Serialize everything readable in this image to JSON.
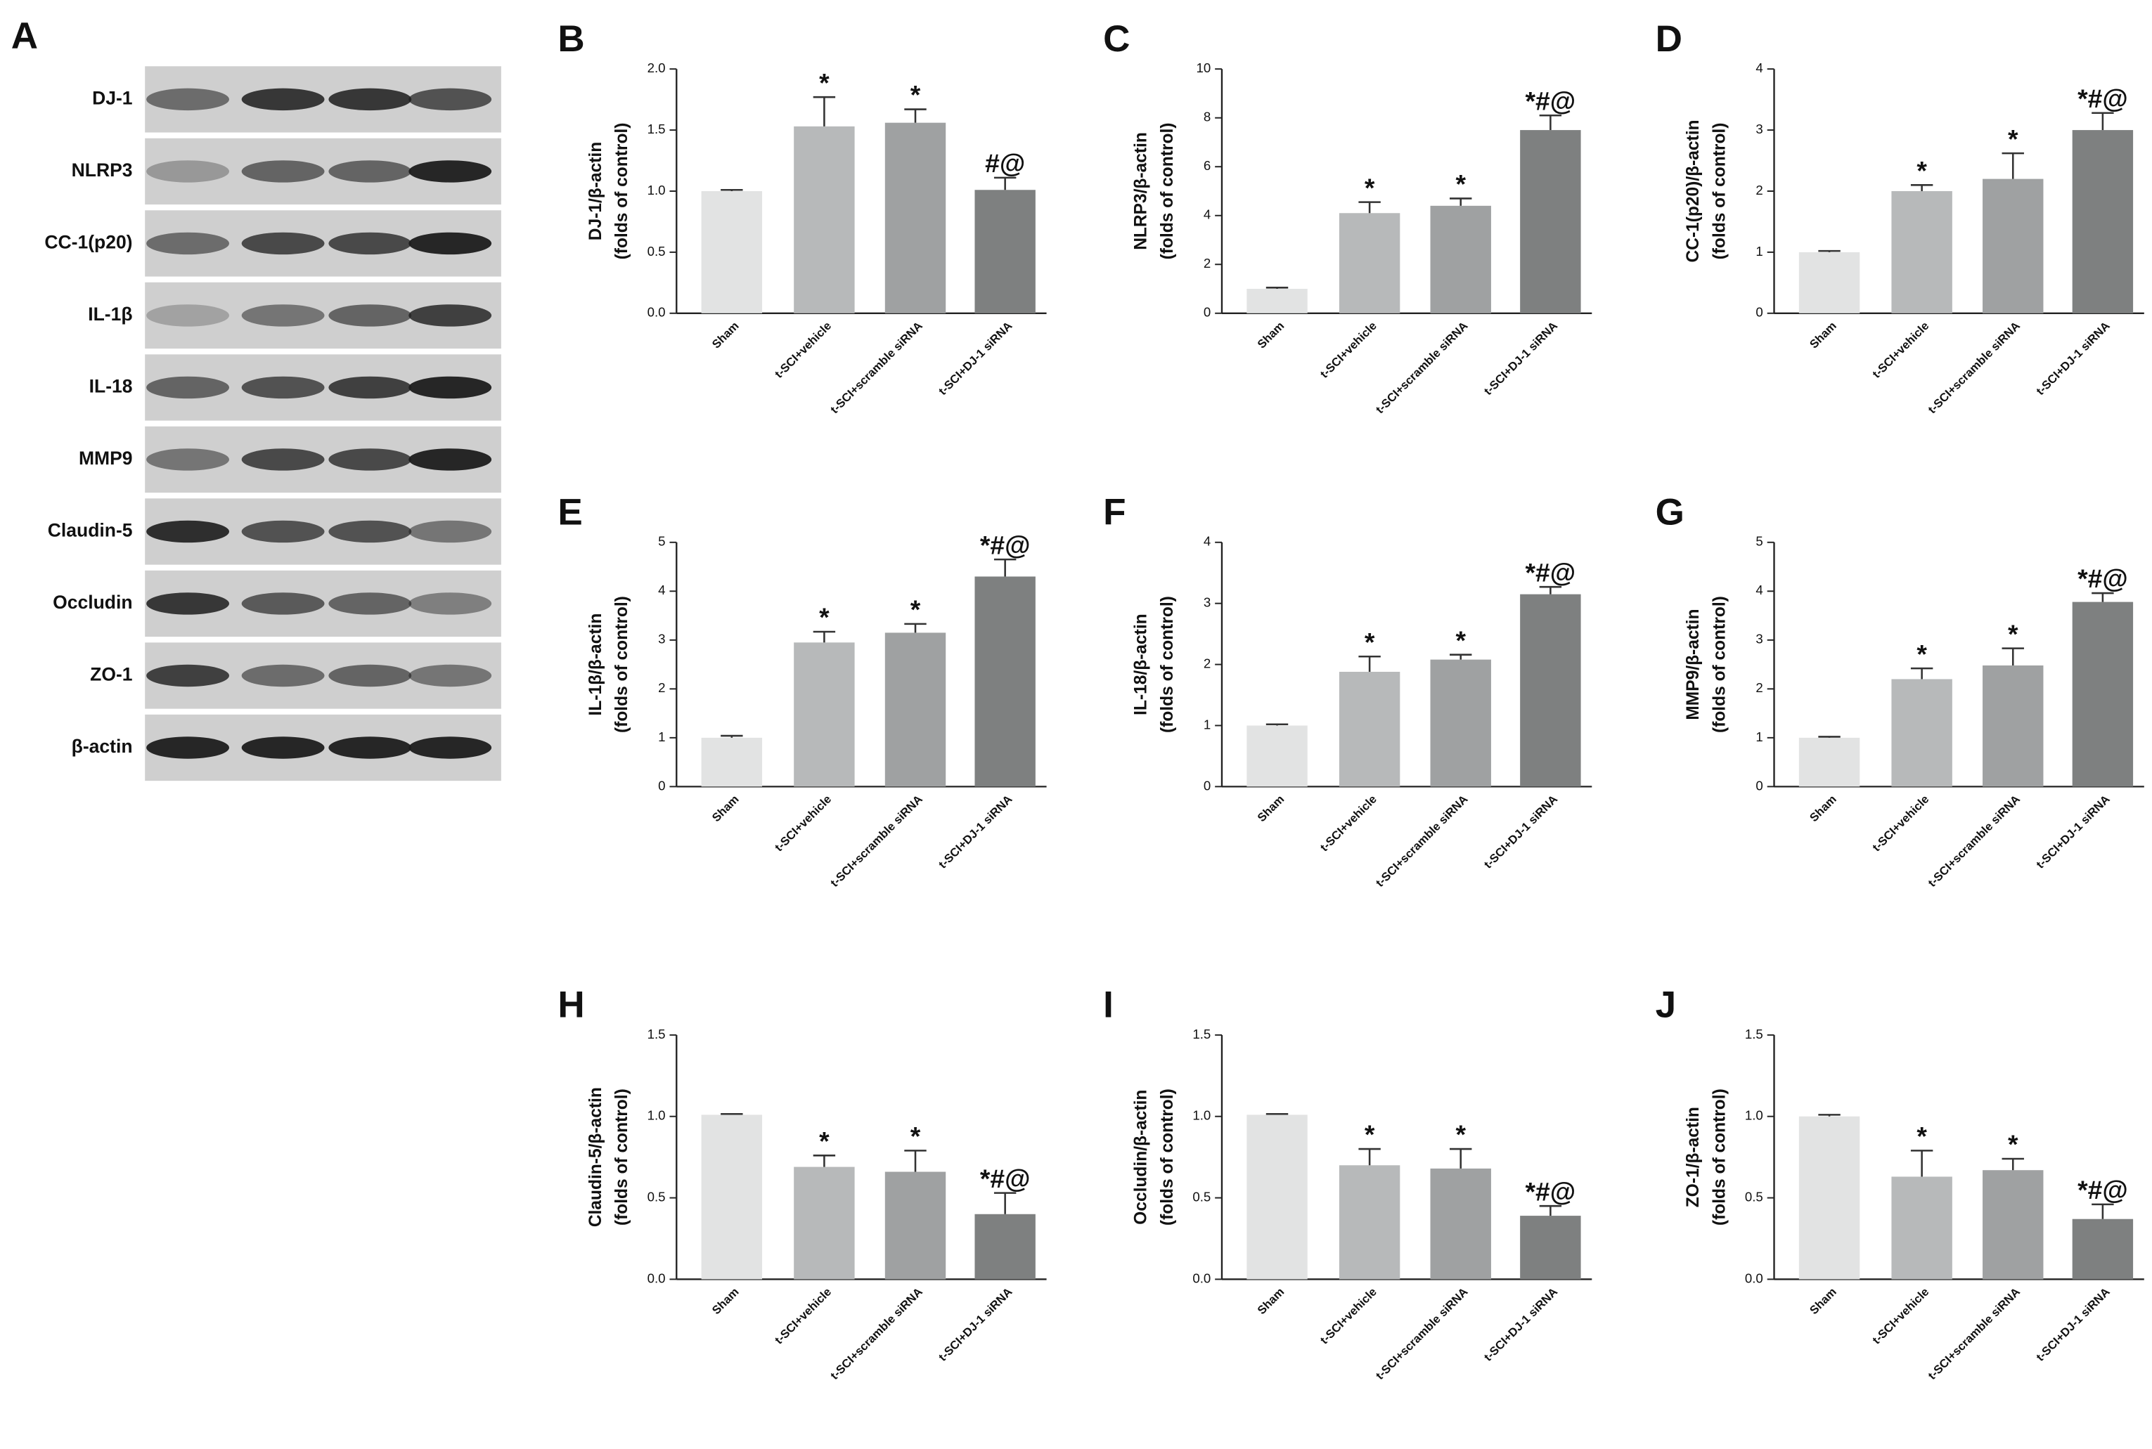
{
  "blot": {
    "label": "A",
    "rows": [
      "DJ-1",
      "NLRP3",
      "CC-1(p20)",
      "IL-1β",
      "IL-18",
      "MMP9",
      "Claudin-5",
      "Occludin",
      "ZO-1",
      "β-actin"
    ]
  },
  "chart_data": [
    {
      "type": "bar",
      "panel": "B",
      "y_label": [
        "DJ-1/β-actin",
        "(folds of control)"
      ],
      "categories": [
        "Sham",
        "t-SCI+vehicle",
        "t-SCI+scramble siRNA",
        "t-SCI+DJ-1 siRNA"
      ],
      "colors": [
        "#e2e3e3",
        "#b7b9ba",
        "#9fa1a2",
        "#7e8080"
      ],
      "values": [
        1.0,
        1.53,
        1.56,
        1.01
      ],
      "errors": [
        0.01,
        0.24,
        0.11,
        0.1
      ],
      "annotations": [
        null,
        "*",
        "*",
        "#@"
      ],
      "ylim": [
        0,
        2
      ],
      "yticks": [
        {
          "value": 0,
          "label": "0.0"
        },
        {
          "value": 0.5,
          "label": "0.5"
        },
        {
          "value": 1,
          "label": "1.0"
        },
        {
          "value": 1.5,
          "label": "1.5"
        },
        {
          "value": 2,
          "label": "2.0"
        }
      ]
    },
    {
      "type": "bar",
      "panel": "C",
      "y_label": [
        "NLRP3/β-actin",
        "(folds of control)"
      ],
      "categories": [
        "Sham",
        "t-SCI+vehicle",
        "t-SCI+scramble siRNA",
        "t-SCI+DJ-1 siRNA"
      ],
      "colors": [
        "#e2e3e3",
        "#b7b9ba",
        "#9fa1a2",
        "#7e8080"
      ],
      "values": [
        1.0,
        4.1,
        4.4,
        7.5
      ],
      "errors": [
        0.05,
        0.45,
        0.3,
        0.6
      ],
      "annotations": [
        null,
        "*",
        "*",
        "*#@"
      ],
      "ylim": [
        0,
        10
      ],
      "yticks": [
        0,
        2,
        4,
        6,
        8,
        10
      ]
    },
    {
      "type": "bar",
      "panel": "D",
      "y_label": [
        "CC-1(p20)/β-actin",
        "(folds of control)"
      ],
      "categories": [
        "Sham",
        "t-SCI+vehicle",
        "t-SCI+scramble siRNA",
        "t-SCI+DJ-1 siRNA"
      ],
      "colors": [
        "#e2e3e3",
        "#b7b9ba",
        "#9fa1a2",
        "#7e8080"
      ],
      "values": [
        1.0,
        2.0,
        2.2,
        3.0
      ],
      "errors": [
        0.02,
        0.1,
        0.42,
        0.28
      ],
      "annotations": [
        null,
        "*",
        "*",
        "*#@"
      ],
      "ylim": [
        0,
        4
      ],
      "yticks": [
        0,
        1,
        2,
        3,
        4
      ]
    },
    {
      "type": "bar",
      "panel": "E",
      "y_label": [
        "IL-1β/β-actin",
        "(folds of control)"
      ],
      "categories": [
        "Sham",
        "t-SCI+vehicle",
        "t-SCI+scramble siRNA",
        "t-SCI+DJ-1 siRNA"
      ],
      "colors": [
        "#e2e3e3",
        "#b7b9ba",
        "#9fa1a2",
        "#7e8080"
      ],
      "values": [
        1.0,
        2.95,
        3.15,
        4.3
      ],
      "errors": [
        0.04,
        0.22,
        0.18,
        0.35
      ],
      "annotations": [
        null,
        "*",
        "*",
        "*#@"
      ],
      "ylim": [
        0,
        5
      ],
      "yticks": [
        0,
        1,
        2,
        3,
        4,
        5
      ]
    },
    {
      "type": "bar",
      "panel": "F",
      "y_label": [
        "IL-18/β-actin",
        "(folds of control)"
      ],
      "categories": [
        "Sham",
        "t-SCI+vehicle",
        "t-SCI+scramble siRNA",
        "t-SCI+DJ-1 siRNA"
      ],
      "colors": [
        "#e2e3e3",
        "#b7b9ba",
        "#9fa1a2",
        "#7e8080"
      ],
      "values": [
        1.0,
        1.88,
        2.08,
        3.15
      ],
      "errors": [
        0.02,
        0.25,
        0.08,
        0.12
      ],
      "annotations": [
        null,
        "*",
        "*",
        "*#@"
      ],
      "ylim": [
        0,
        4
      ],
      "yticks": [
        0,
        1,
        2,
        3,
        4
      ]
    },
    {
      "type": "bar",
      "panel": "G",
      "y_label": [
        "MMP9/β-actin",
        "(folds of control)"
      ],
      "categories": [
        "Sham",
        "t-SCI+vehicle",
        "t-SCI+scramble siRNA",
        "t-SCI+DJ-1 siRNA"
      ],
      "colors": [
        "#e2e3e3",
        "#b7b9ba",
        "#9fa1a2",
        "#7e8080"
      ],
      "values": [
        1.0,
        2.2,
        2.48,
        3.78
      ],
      "errors": [
        0.02,
        0.22,
        0.35,
        0.18
      ],
      "annotations": [
        null,
        "*",
        "*",
        "*#@"
      ],
      "ylim": [
        0,
        5
      ],
      "yticks": [
        0,
        1,
        2,
        3,
        4,
        5
      ]
    },
    {
      "type": "bar",
      "panel": "H",
      "y_label": [
        "Claudin-5/β-actin",
        "(folds of control)"
      ],
      "categories": [
        "Sham",
        "t-SCI+vehicle",
        "t-SCI+scramble siRNA",
        "t-SCI+DJ-1 siRNA"
      ],
      "colors": [
        "#e2e3e3",
        "#b7b9ba",
        "#9fa1a2",
        "#7e8080"
      ],
      "values": [
        1.01,
        0.69,
        0.66,
        0.4
      ],
      "errors": [
        0.005,
        0.07,
        0.13,
        0.13
      ],
      "annotations": [
        null,
        "*",
        "*",
        "*#@"
      ],
      "ylim": [
        0,
        1.5
      ],
      "yticks": [
        {
          "value": 0,
          "label": "0.0"
        },
        {
          "value": 0.5,
          "label": "0.5"
        },
        {
          "value": 1,
          "label": "1.0"
        },
        {
          "value": 1.5,
          "label": "1.5"
        }
      ]
    },
    {
      "type": "bar",
      "panel": "I",
      "y_label": [
        "Occludin/β-actin",
        "(folds of control)"
      ],
      "categories": [
        "Sham",
        "t-SCI+vehicle",
        "t-SCI+scramble siRNA",
        "t-SCI+DJ-1 siRNA"
      ],
      "colors": [
        "#e2e3e3",
        "#b7b9ba",
        "#9fa1a2",
        "#7e8080"
      ],
      "values": [
        1.01,
        0.7,
        0.68,
        0.39
      ],
      "errors": [
        0.005,
        0.1,
        0.12,
        0.06
      ],
      "annotations": [
        null,
        "*",
        "*",
        "*#@"
      ],
      "ylim": [
        0,
        1.5
      ],
      "yticks": [
        {
          "value": 0,
          "label": "0.0"
        },
        {
          "value": 0.5,
          "label": "0.5"
        },
        {
          "value": 1,
          "label": "1.0"
        },
        {
          "value": 1.5,
          "label": "1.5"
        }
      ]
    },
    {
      "type": "bar",
      "panel": "J",
      "y_label": [
        "ZO-1/β-actin",
        "(folds of control)"
      ],
      "categories": [
        "Sham",
        "t-SCI+vehicle",
        "t-SCI+scramble siRNA",
        "t-SCI+DJ-1 siRNA"
      ],
      "colors": [
        "#e2e3e3",
        "#b7b9ba",
        "#9fa1a2",
        "#7e8080"
      ],
      "values": [
        1.0,
        0.63,
        0.67,
        0.37
      ],
      "errors": [
        0.01,
        0.16,
        0.07,
        0.09
      ],
      "annotations": [
        null,
        "*",
        "*",
        "*#@"
      ],
      "ylim": [
        0,
        1.5
      ],
      "yticks": [
        {
          "value": 0,
          "label": "0.0"
        },
        {
          "value": 0.5,
          "label": "0.5"
        },
        {
          "value": 1,
          "label": "1.0"
        },
        {
          "value": 1.5,
          "label": "1.5"
        }
      ]
    }
  ]
}
